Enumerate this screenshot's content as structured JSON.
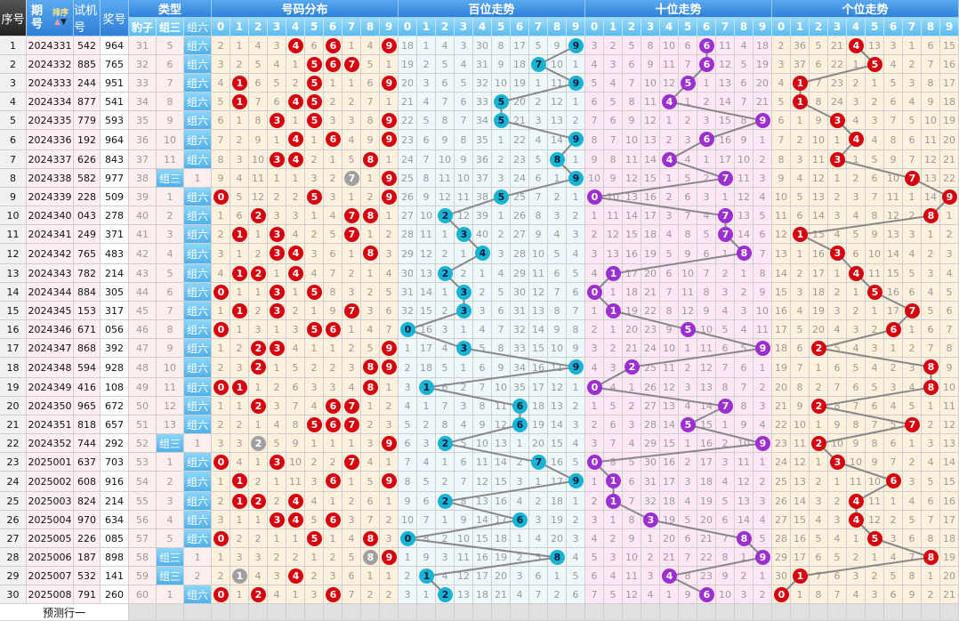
{
  "header": {
    "seq": "序号",
    "issue": "期号",
    "sort_label": "排序",
    "sort_up": "▲",
    "sort_down": "▼",
    "test": "试机号",
    "draw": "奖号",
    "type_group": "类型",
    "dist_group": "号码分布",
    "bai_group": "百位走势",
    "shi_group": "十位走势",
    "ge_group": "个位走势",
    "type_cols": [
      "豹子",
      "组三",
      "组六"
    ],
    "digits": [
      "0",
      "1",
      "2",
      "3",
      "4",
      "5",
      "6",
      "7",
      "8",
      "9"
    ]
  },
  "type_labels": {
    "baozi": "豹子",
    "zusan": "组三",
    "zuliu": "组六"
  },
  "colors": {
    "dist_ball": "#d6000f",
    "repeat_ball": "#a0a0a0",
    "bai_ball": "#17b4d3",
    "shi_ball": "#9b2fd0",
    "ge_ball": "#d6000f",
    "line": "#888888"
  },
  "initial_misses": {
    "baozi": 31,
    "zusan": 5,
    "dist": [
      2,
      1,
      4,
      3,
      0,
      6,
      0,
      1,
      4,
      0
    ],
    "bai": [
      18,
      1,
      4,
      3,
      30,
      8,
      17,
      5,
      9,
      0
    ],
    "shi": [
      3,
      2,
      5,
      8,
      10,
      6,
      0,
      11,
      4,
      18
    ],
    "ge": [
      2,
      36,
      5,
      21,
      0,
      13,
      3,
      1,
      6,
      15
    ]
  },
  "rows": [
    {
      "seq": "1",
      "issue": "2024331",
      "test": "542",
      "draw": "964"
    },
    {
      "seq": "2",
      "issue": "2024332",
      "test": "885",
      "draw": "765"
    },
    {
      "seq": "3",
      "issue": "2024333",
      "test": "244",
      "draw": "951"
    },
    {
      "seq": "4",
      "issue": "2024334",
      "test": "877",
      "draw": "541"
    },
    {
      "seq": "5",
      "issue": "2024335",
      "test": "779",
      "draw": "593"
    },
    {
      "seq": "6",
      "issue": "2024336",
      "test": "192",
      "draw": "964"
    },
    {
      "seq": "7",
      "issue": "2024337",
      "test": "626",
      "draw": "843"
    },
    {
      "seq": "8",
      "issue": "2024338",
      "test": "582",
      "draw": "977"
    },
    {
      "seq": "9",
      "issue": "2024339",
      "test": "228",
      "draw": "509"
    },
    {
      "seq": "10",
      "issue": "2024340",
      "test": "043",
      "draw": "278"
    },
    {
      "seq": "11",
      "issue": "2024341",
      "test": "249",
      "draw": "371"
    },
    {
      "seq": "12",
      "issue": "2024342",
      "test": "765",
      "draw": "483"
    },
    {
      "seq": "13",
      "issue": "2024343",
      "test": "782",
      "draw": "214"
    },
    {
      "seq": "14",
      "issue": "2024344",
      "test": "884",
      "draw": "305"
    },
    {
      "seq": "15",
      "issue": "2024345",
      "test": "153",
      "draw": "317"
    },
    {
      "seq": "16",
      "issue": "2024346",
      "test": "671",
      "draw": "056"
    },
    {
      "seq": "17",
      "issue": "2024347",
      "test": "868",
      "draw": "392"
    },
    {
      "seq": "18",
      "issue": "2024348",
      "test": "594",
      "draw": "928"
    },
    {
      "seq": "19",
      "issue": "2024349",
      "test": "416",
      "draw": "108"
    },
    {
      "seq": "20",
      "issue": "2024350",
      "test": "965",
      "draw": "672"
    },
    {
      "seq": "21",
      "issue": "2024351",
      "test": "818",
      "draw": "657"
    },
    {
      "seq": "22",
      "issue": "2024352",
      "test": "744",
      "draw": "292"
    },
    {
      "seq": "23",
      "issue": "2025001",
      "test": "637",
      "draw": "703"
    },
    {
      "seq": "24",
      "issue": "2025002",
      "test": "608",
      "draw": "916"
    },
    {
      "seq": "25",
      "issue": "2025003",
      "test": "824",
      "draw": "214"
    },
    {
      "seq": "26",
      "issue": "2025004",
      "test": "970",
      "draw": "634"
    },
    {
      "seq": "27",
      "issue": "2025005",
      "test": "226",
      "draw": "085"
    },
    {
      "seq": "28",
      "issue": "2025006",
      "test": "187",
      "draw": "898"
    },
    {
      "seq": "29",
      "issue": "2025007",
      "test": "532",
      "draw": "141"
    },
    {
      "seq": "30",
      "issue": "2025008",
      "test": "791",
      "draw": "260"
    }
  ],
  "prediction_label": "预测行一"
}
